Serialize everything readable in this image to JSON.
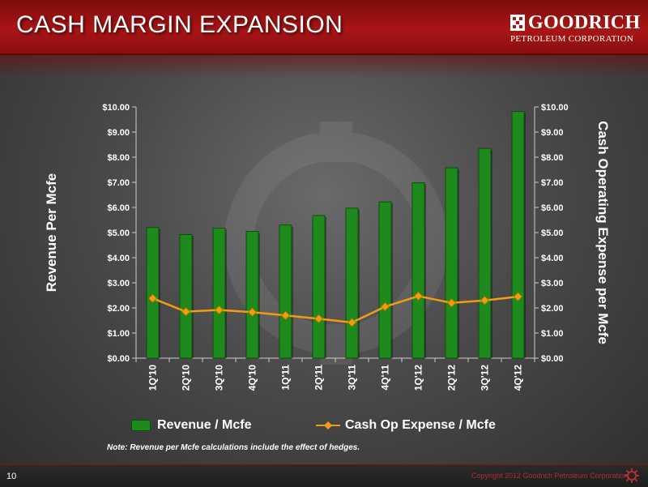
{
  "slide": {
    "title": "CASH MARGIN EXPANSION",
    "logo_name": "GOODRICH",
    "logo_sub": "PETROLEUM CORPORATION",
    "note": "Note:  Revenue per Mcfe calculations include the effect of hedges.",
    "page_number": "10",
    "copyright": "Copyright 2012 Goodrich Petroleum Corporation"
  },
  "chart_data": {
    "type": "bar",
    "categories": [
      "1Q'10",
      "2Q'10",
      "3Q'10",
      "4Q'10",
      "1Q'11",
      "2Q'11",
      "3Q'11",
      "4Q'11",
      "1Q'12",
      "2Q'12",
      "3Q'12",
      "4Q'12"
    ],
    "series": [
      {
        "name": "Revenue / Mcfe",
        "type": "bar",
        "axis": "left",
        "color": "#1e8a1e",
        "values": [
          5.2,
          4.92,
          5.18,
          5.05,
          5.3,
          5.68,
          5.97,
          6.22,
          6.98,
          7.58,
          8.35,
          9.82
        ]
      },
      {
        "name": "Cash Op Expense / Mcfe",
        "type": "line",
        "axis": "right",
        "color": "#f39c12",
        "values": [
          2.38,
          1.85,
          1.92,
          1.83,
          1.7,
          1.57,
          1.42,
          2.05,
          2.47,
          2.2,
          2.3,
          2.45
        ]
      }
    ],
    "ylabel": "Revenue Per Mcfe",
    "ylabel_right": "Cash Operating Expense per Mcfe",
    "ylim": [
      0,
      10
    ],
    "ylim_right": [
      0,
      10
    ],
    "yticks": [
      "$0.00",
      "$1.00",
      "$2.00",
      "$3.00",
      "$4.00",
      "$5.00",
      "$6.00",
      "$7.00",
      "$8.00",
      "$9.00",
      "$10.00"
    ],
    "grid": false,
    "legend": "bottom"
  },
  "colors": {
    "header_red": "#a81515",
    "bar_green": "#1e8a1e",
    "line_orange": "#f39c12",
    "text": "#ffffff"
  },
  "icons": [
    "goodrich-logo-icon",
    "goodrich-footer-icon"
  ]
}
